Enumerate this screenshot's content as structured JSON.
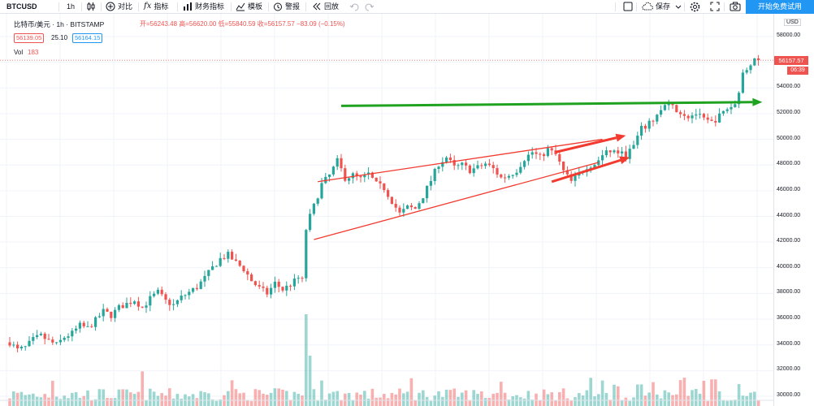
{
  "toolbar": {
    "symbol": "BTCUSD",
    "interval": "1h",
    "compare_label": "对比",
    "indicators_label": "指标",
    "financials_label": "财务指标",
    "templates_label": "模板",
    "alert_label": "警报",
    "replay_label": "回放",
    "save_label": "保存",
    "start_trial_label": "开始免费试用"
  },
  "legend": {
    "title": "比特币/美元 · 1h · BITSTAMP",
    "ohlc": "开=56243.48 高=56620.00 低=55840.59 收=56157.57 −83.09 (−0.15%)",
    "bid": "56139.05",
    "spread": "25.10",
    "ask": "56164.15",
    "volume_label": "Vol",
    "volume_value": "183"
  },
  "price_axis": {
    "unit": "USD",
    "ticks": [
      "58000.00",
      "56000.00",
      "54000.00",
      "52000.00",
      "50000.00",
      "48000.00",
      "46000.00",
      "44000.00",
      "42000.00",
      "40000.00",
      "38000.00",
      "36000.00",
      "34000.00",
      "32000.00",
      "30000.00"
    ],
    "last_price": "56157.57",
    "countdown": "06:39"
  },
  "chart_data": {
    "type": "candlestick",
    "symbol": "BTCUSD",
    "ylim": [
      30000,
      58000
    ],
    "last_close": 56157.57,
    "price_path": [
      [
        0,
        34200
      ],
      [
        2,
        33600
      ],
      [
        4,
        33800
      ],
      [
        6,
        34400
      ],
      [
        8,
        34700
      ],
      [
        10,
        34300
      ],
      [
        12,
        34000
      ],
      [
        14,
        34600
      ],
      [
        16,
        34900
      ],
      [
        18,
        35500
      ],
      [
        20,
        35300
      ],
      [
        22,
        35900
      ],
      [
        24,
        36600
      ],
      [
        26,
        36300
      ],
      [
        28,
        36900
      ],
      [
        30,
        37200
      ],
      [
        32,
        37500
      ],
      [
        34,
        36900
      ],
      [
        36,
        37600
      ],
      [
        38,
        38100
      ],
      [
        40,
        37400
      ],
      [
        42,
        37100
      ],
      [
        44,
        37700
      ],
      [
        46,
        38100
      ],
      [
        48,
        38500
      ],
      [
        50,
        39200
      ],
      [
        52,
        40000
      ],
      [
        54,
        40700
      ],
      [
        56,
        41000
      ],
      [
        58,
        40400
      ],
      [
        60,
        39900
      ],
      [
        62,
        39000
      ],
      [
        64,
        38400
      ],
      [
        66,
        38000
      ],
      [
        68,
        38800
      ],
      [
        70,
        38300
      ],
      [
        72,
        38700
      ],
      [
        74,
        39200
      ],
      [
        75,
        39000
      ],
      [
        76,
        43000
      ],
      [
        77,
        44000
      ],
      [
        78,
        44800
      ],
      [
        80,
        46500
      ],
      [
        82,
        47200
      ],
      [
        84,
        48300
      ],
      [
        86,
        47000
      ],
      [
        88,
        47200
      ],
      [
        90,
        46900
      ],
      [
        92,
        47300
      ],
      [
        94,
        46500
      ],
      [
        96,
        46200
      ],
      [
        98,
        45200
      ],
      [
        100,
        44200
      ],
      [
        102,
        44700
      ],
      [
        104,
        44600
      ],
      [
        106,
        45600
      ],
      [
        108,
        46800
      ],
      [
        110,
        48100
      ],
      [
        112,
        48600
      ],
      [
        114,
        47800
      ],
      [
        116,
        48000
      ],
      [
        118,
        47600
      ],
      [
        120,
        47800
      ],
      [
        122,
        48100
      ],
      [
        124,
        47700
      ],
      [
        126,
        47000
      ],
      [
        128,
        47200
      ],
      [
        130,
        47600
      ],
      [
        132,
        48500
      ],
      [
        134,
        49000
      ],
      [
        136,
        48600
      ],
      [
        138,
        49200
      ],
      [
        140,
        48800
      ],
      [
        142,
        47500
      ],
      [
        144,
        46700
      ],
      [
        146,
        47300
      ],
      [
        148,
        47900
      ],
      [
        150,
        48100
      ],
      [
        152,
        48700
      ],
      [
        154,
        49100
      ],
      [
        156,
        49000
      ],
      [
        158,
        48700
      ],
      [
        160,
        49500
      ],
      [
        162,
        50800
      ],
      [
        164,
        51200
      ],
      [
        166,
        51900
      ],
      [
        168,
        52600
      ],
      [
        170,
        52500
      ],
      [
        172,
        52100
      ],
      [
        174,
        51800
      ],
      [
        176,
        52000
      ],
      [
        178,
        51500
      ],
      [
        180,
        51300
      ],
      [
        182,
        51800
      ],
      [
        184,
        52400
      ],
      [
        186,
        52700
      ],
      [
        188,
        55000
      ],
      [
        190,
        56000
      ],
      [
        192,
        56157.57
      ]
    ],
    "annotations": [
      {
        "type": "arrow",
        "color": "#1fa21f",
        "from": [
          85,
          52600
        ],
        "to": [
          193,
          52900
        ]
      },
      {
        "type": "line",
        "color": "#f23a2e",
        "from": [
          79,
          46700
        ],
        "to": [
          152,
          50000
        ]
      },
      {
        "type": "line",
        "color": "#f23a2e",
        "from": [
          78,
          42200
        ],
        "to": [
          151,
          48200
        ]
      },
      {
        "type": "arrow",
        "color": "#f23a2e",
        "from": [
          140,
          49000
        ],
        "to": [
          158,
          50300
        ]
      },
      {
        "type": "arrow",
        "color": "#f23a2e",
        "from": [
          139,
          46700
        ],
        "to": [
          159,
          48600
        ]
      }
    ]
  },
  "colors": {
    "up": "#26a69a",
    "down": "#ef5350",
    "trial_button": "#2196f3",
    "last_price": "#ef5350"
  }
}
